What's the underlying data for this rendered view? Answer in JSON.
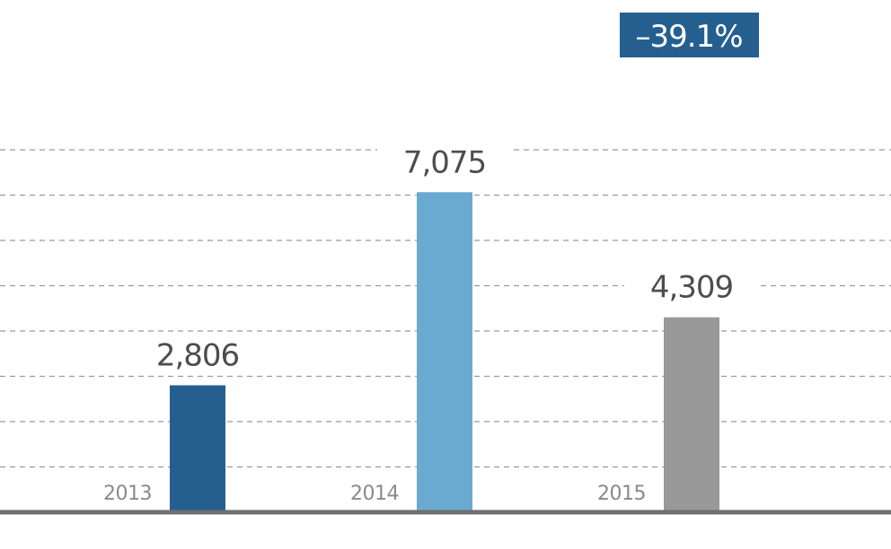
{
  "chart_data": {
    "type": "bar",
    "categories": [
      "2013",
      "2014",
      "2015"
    ],
    "values": [
      2806,
      7075,
      4309
    ],
    "value_labels": [
      "2,806",
      "7,075",
      "4,309"
    ],
    "colors": [
      "#255f8f",
      "#6aaad0",
      "#999999"
    ],
    "ylim": [
      0,
      7100
    ],
    "grid": true,
    "gridline_count": 8,
    "title": "",
    "xlabel": "",
    "ylabel": ""
  },
  "change_badge": {
    "text": "–39.1%",
    "color": "#255f8f"
  },
  "colors": {
    "grid": "#9a9a9a",
    "baseline": "#6f6f6f",
    "value_text": "#4d4d4d",
    "year_text": "#8a8a8a"
  }
}
